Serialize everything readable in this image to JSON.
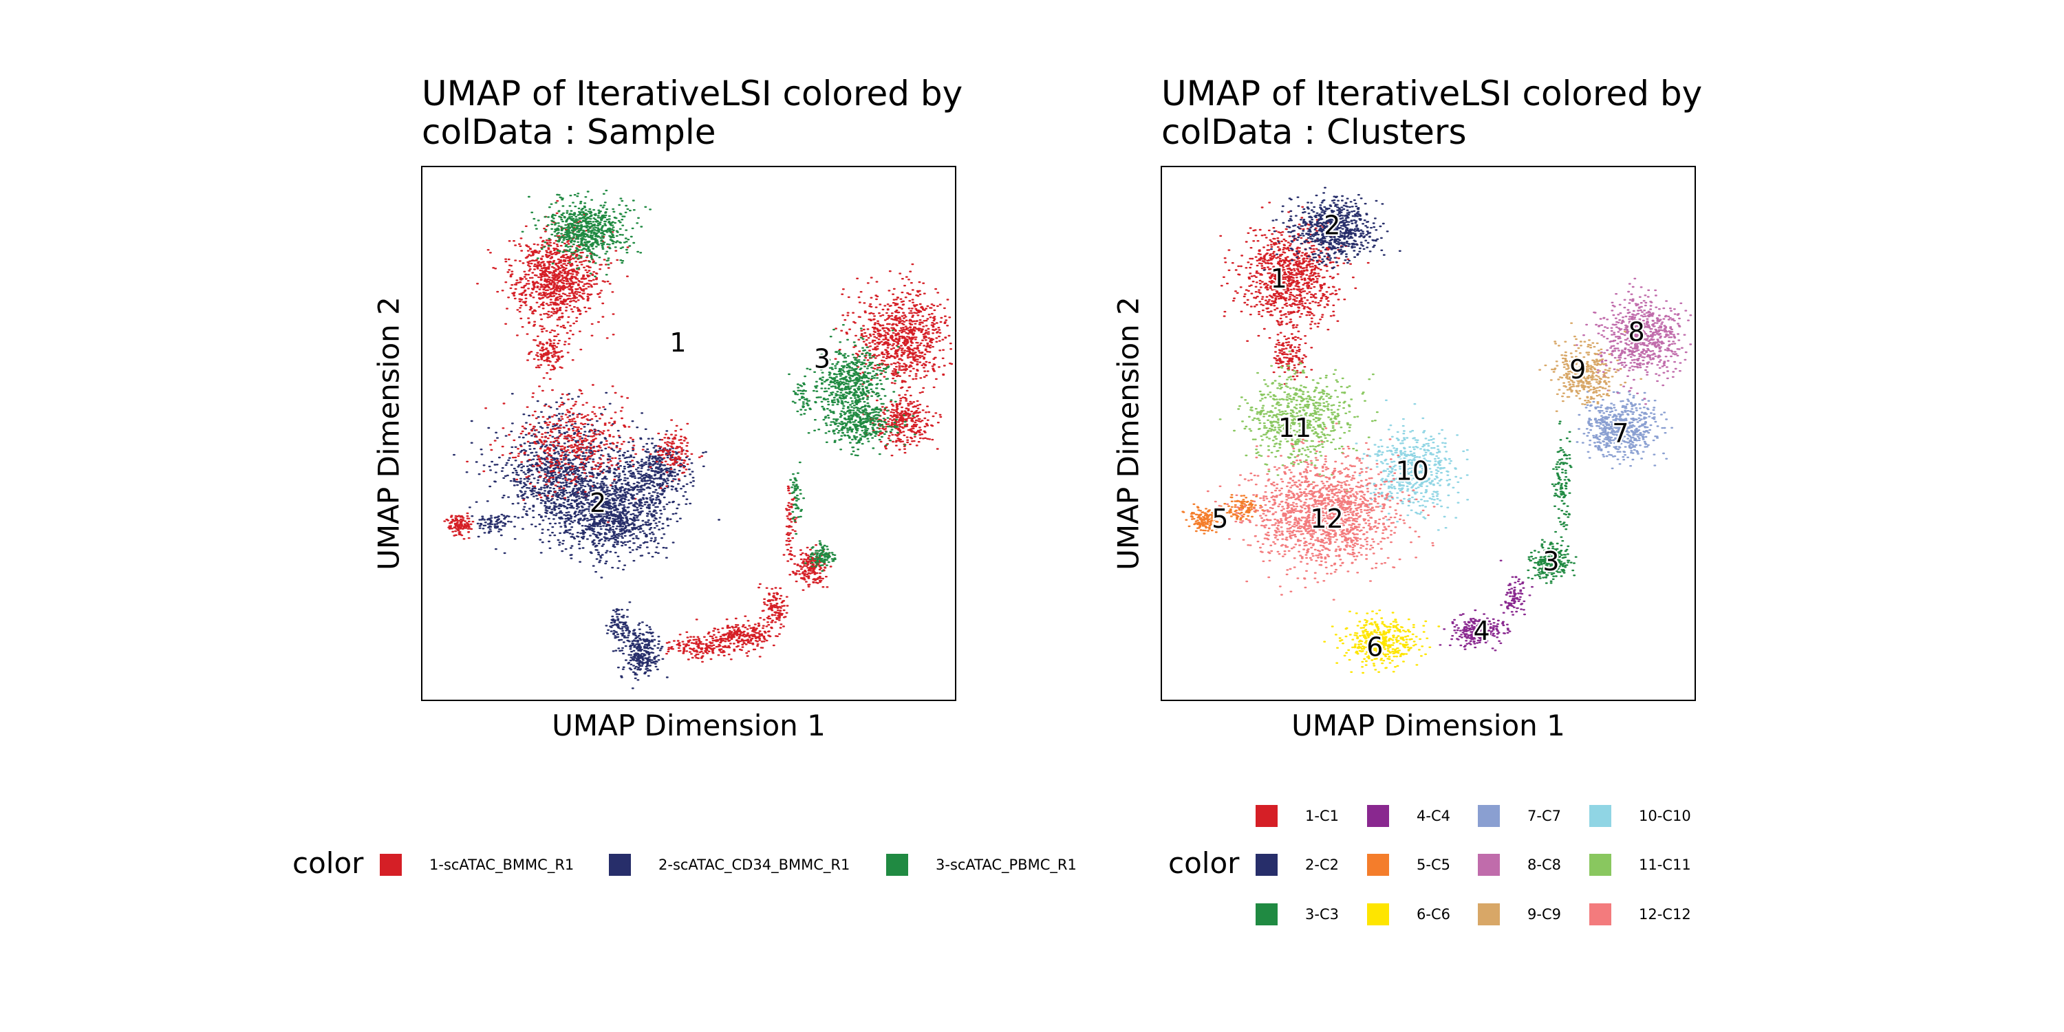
{
  "chart_data": [
    {
      "type": "scatter",
      "title_line1": "UMAP of IterativeLSI  colored by",
      "title_line2": "colData :  Sample",
      "xlabel": "UMAP Dimension 1",
      "ylabel": "UMAP Dimension 2",
      "legend_title": "color",
      "legend_position": "bottom",
      "grid": false,
      "xlim": [
        0,
        100
      ],
      "ylim": [
        0,
        100
      ],
      "series": [
        {
          "name": "1-scATAC_BMMC_R1",
          "color": "#D51F26"
        },
        {
          "name": "2-scATAC_CD34_BMMC_R1",
          "color": "#272E6A"
        },
        {
          "name": "3-scATAC_PBMC_R1",
          "color": "#208A42"
        }
      ],
      "series_labels": [
        "1-scATAC_BMMC_R1",
        "2-scATAC_CD34_BMMC_R1",
        "3-scATAC_PBMC_R1"
      ],
      "cluster_labels": [
        {
          "text": "1",
          "x": 48,
          "y": 67
        },
        {
          "text": "2",
          "x": 33,
          "y": 37
        },
        {
          "text": "3",
          "x": 75,
          "y": 64
        }
      ],
      "blobs": [
        {
          "series": 0,
          "cx": 25,
          "cy": 79,
          "rx": 8,
          "ry": 8,
          "n": 900
        },
        {
          "series": 2,
          "cx": 31,
          "cy": 88,
          "rx": 7,
          "ry": 5,
          "n": 650
        },
        {
          "series": 0,
          "cx": 24,
          "cy": 65,
          "rx": 3,
          "ry": 4,
          "n": 120
        },
        {
          "series": 1,
          "cx": 26,
          "cy": 42,
          "rx": 11,
          "ry": 10,
          "n": 1000
        },
        {
          "series": 0,
          "cx": 28,
          "cy": 48,
          "rx": 10,
          "ry": 8,
          "n": 450
        },
        {
          "series": 1,
          "cx": 36,
          "cy": 35,
          "rx": 9,
          "ry": 7,
          "n": 900
        },
        {
          "series": 1,
          "cx": 44,
          "cy": 43,
          "rx": 6,
          "ry": 5,
          "n": 350
        },
        {
          "series": 0,
          "cx": 47,
          "cy": 47,
          "rx": 3,
          "ry": 4,
          "n": 120
        },
        {
          "series": 0,
          "cx": 7,
          "cy": 33,
          "rx": 2,
          "ry": 2,
          "n": 120
        },
        {
          "series": 1,
          "cx": 13,
          "cy": 33,
          "rx": 3,
          "ry": 1.5,
          "n": 70
        },
        {
          "series": 0,
          "cx": 90,
          "cy": 68,
          "rx": 8,
          "ry": 8,
          "n": 800
        },
        {
          "series": 2,
          "cx": 80,
          "cy": 60,
          "rx": 6,
          "ry": 6,
          "n": 500
        },
        {
          "series": 0,
          "cx": 90,
          "cy": 52,
          "rx": 5,
          "ry": 4,
          "n": 300
        },
        {
          "series": 2,
          "cx": 82,
          "cy": 52,
          "rx": 6,
          "ry": 4,
          "n": 350
        },
        {
          "series": 0,
          "cx": 73,
          "cy": 25,
          "rx": 3,
          "ry": 3,
          "n": 180
        },
        {
          "series": 2,
          "cx": 75,
          "cy": 27,
          "rx": 2,
          "ry": 2,
          "n": 100
        },
        {
          "series": 0,
          "cx": 60,
          "cy": 12,
          "rx": 5,
          "ry": 2.5,
          "n": 220
        },
        {
          "series": 0,
          "cx": 52,
          "cy": 10,
          "rx": 5,
          "ry": 2,
          "n": 150
        },
        {
          "series": 0,
          "cx": 66,
          "cy": 17,
          "rx": 2,
          "ry": 4,
          "n": 120
        },
        {
          "series": 1,
          "cx": 41,
          "cy": 9,
          "rx": 3,
          "ry": 4,
          "n": 260
        },
        {
          "series": 1,
          "cx": 37,
          "cy": 14,
          "rx": 2,
          "ry": 3,
          "n": 90
        },
        {
          "series": 0,
          "cx": 69,
          "cy": 34,
          "rx": 1,
          "ry": 6,
          "n": 60
        },
        {
          "series": 2,
          "cx": 70,
          "cy": 38,
          "rx": 1,
          "ry": 5,
          "n": 50
        },
        {
          "series": 2,
          "cx": 71,
          "cy": 57,
          "rx": 1.5,
          "ry": 3,
          "n": 40
        }
      ]
    },
    {
      "type": "scatter",
      "title_line1": "UMAP of IterativeLSI  colored by",
      "title_line2": "colData :  Clusters",
      "xlabel": "UMAP Dimension 1",
      "ylabel": "UMAP Dimension 2",
      "legend_title": "color",
      "legend_position": "bottom",
      "grid": false,
      "xlim": [
        0,
        100
      ],
      "ylim": [
        0,
        100
      ],
      "series": [
        {
          "name": "1-C1",
          "color": "#D51F26"
        },
        {
          "name": "2-C2",
          "color": "#272E6A"
        },
        {
          "name": "3-C3",
          "color": "#208A42"
        },
        {
          "name": "4-C4",
          "color": "#89288F"
        },
        {
          "name": "5-C5",
          "color": "#F47D2B"
        },
        {
          "name": "6-C6",
          "color": "#FEE500"
        },
        {
          "name": "7-C7",
          "color": "#8A9FD1"
        },
        {
          "name": "8-C8",
          "color": "#C06CAB"
        },
        {
          "name": "9-C9",
          "color": "#D8A767"
        },
        {
          "name": "10-C10",
          "color": "#90D5E4"
        },
        {
          "name": "11-C11",
          "color": "#89C75F"
        },
        {
          "name": "12-C12",
          "color": "#F37B7D"
        }
      ],
      "series_labels": [
        "1-C1",
        "2-C2",
        "3-C3",
        "4-C4",
        "5-C5",
        "6-C6",
        "7-C7",
        "8-C8",
        "9-C9",
        "10-C10",
        "11-C11",
        "12-C12"
      ],
      "cluster_labels": [
        {
          "text": "1",
          "x": 22,
          "y": 79
        },
        {
          "text": "2",
          "x": 32,
          "y": 89
        },
        {
          "text": "3",
          "x": 73,
          "y": 26
        },
        {
          "text": "4",
          "x": 60,
          "y": 13
        },
        {
          "text": "5",
          "x": 11,
          "y": 34
        },
        {
          "text": "6",
          "x": 40,
          "y": 10
        },
        {
          "text": "7",
          "x": 86,
          "y": 50
        },
        {
          "text": "8",
          "x": 89,
          "y": 69
        },
        {
          "text": "9",
          "x": 78,
          "y": 62
        },
        {
          "text": "10",
          "x": 47,
          "y": 43
        },
        {
          "text": "11",
          "x": 25,
          "y": 51
        },
        {
          "text": "12",
          "x": 31,
          "y": 34
        }
      ],
      "blobs": [
        {
          "series": 0,
          "cx": 24,
          "cy": 79,
          "rx": 8,
          "ry": 8,
          "n": 900
        },
        {
          "series": 0,
          "cx": 24,
          "cy": 65,
          "rx": 3,
          "ry": 4,
          "n": 120
        },
        {
          "series": 1,
          "cx": 32,
          "cy": 88,
          "rx": 7,
          "ry": 5,
          "n": 650
        },
        {
          "series": 2,
          "cx": 73,
          "cy": 26,
          "rx": 3,
          "ry": 3,
          "n": 260
        },
        {
          "series": 2,
          "cx": 75,
          "cy": 40,
          "rx": 1.5,
          "ry": 8,
          "n": 110
        },
        {
          "series": 3,
          "cx": 59,
          "cy": 13,
          "rx": 4,
          "ry": 2.5,
          "n": 230
        },
        {
          "series": 3,
          "cx": 66,
          "cy": 19,
          "rx": 2,
          "ry": 4,
          "n": 90
        },
        {
          "series": 4,
          "cx": 8,
          "cy": 34,
          "rx": 2.5,
          "ry": 2,
          "n": 140
        },
        {
          "series": 4,
          "cx": 15,
          "cy": 36,
          "rx": 3,
          "ry": 2,
          "n": 100
        },
        {
          "series": 5,
          "cx": 41,
          "cy": 11,
          "rx": 6,
          "ry": 4,
          "n": 420
        },
        {
          "series": 6,
          "cx": 86,
          "cy": 51,
          "rx": 6,
          "ry": 5,
          "n": 550
        },
        {
          "series": 7,
          "cx": 90,
          "cy": 68,
          "rx": 7,
          "ry": 7,
          "n": 650
        },
        {
          "series": 8,
          "cx": 79,
          "cy": 61,
          "rx": 5,
          "ry": 5,
          "n": 350
        },
        {
          "series": 9,
          "cx": 47,
          "cy": 43,
          "rx": 7,
          "ry": 7,
          "n": 500
        },
        {
          "series": 10,
          "cx": 26,
          "cy": 53,
          "rx": 9,
          "ry": 7,
          "n": 650
        },
        {
          "series": 11,
          "cx": 30,
          "cy": 35,
          "rx": 12,
          "ry": 9,
          "n": 1400
        }
      ]
    }
  ]
}
